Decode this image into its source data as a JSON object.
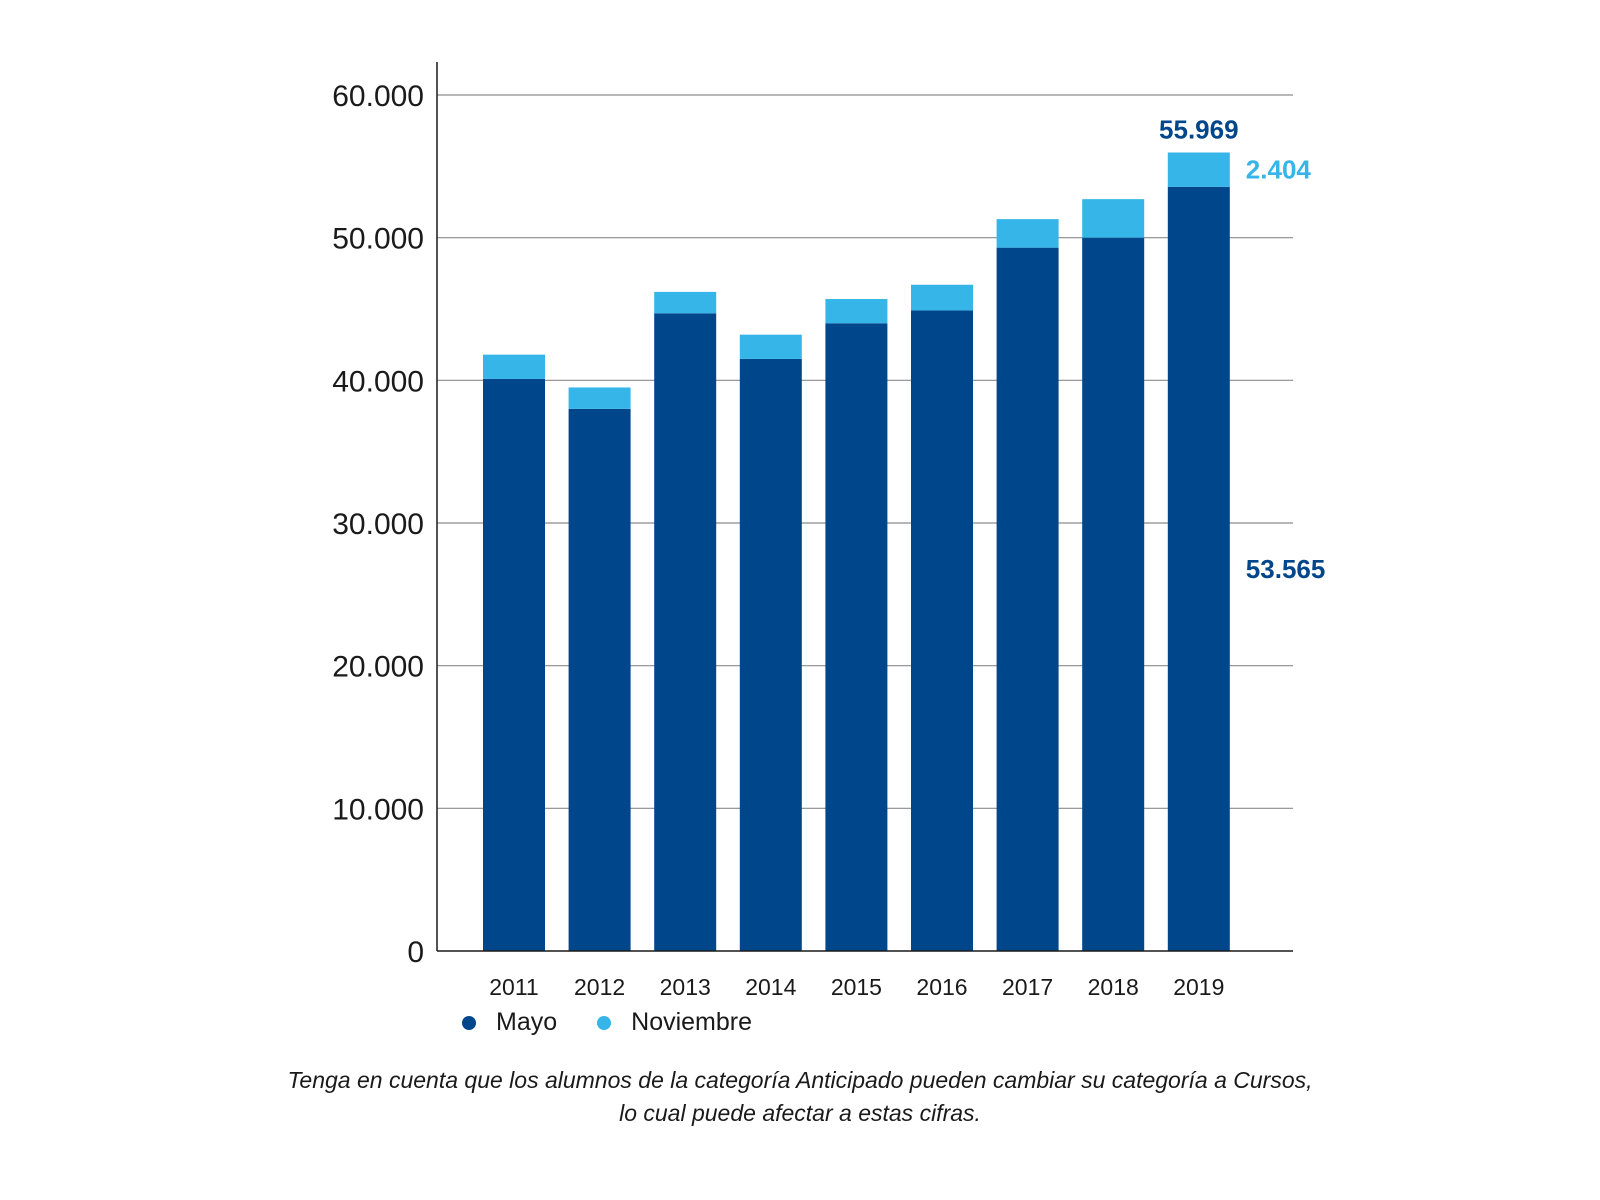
{
  "chart_data": {
    "type": "bar",
    "stacked": true,
    "categories": [
      "2011",
      "2012",
      "2013",
      "2014",
      "2015",
      "2016",
      "2017",
      "2018",
      "2019"
    ],
    "series": [
      {
        "name": "Mayo",
        "color": "#00468b",
        "values": [
          40100,
          38000,
          44700,
          41500,
          44000,
          44900,
          49300,
          50000,
          53565
        ]
      },
      {
        "name": "Noviembre",
        "color": "#35b5e8",
        "values": [
          1700,
          1500,
          1500,
          1700,
          1700,
          1800,
          2000,
          2700,
          2404
        ]
      }
    ],
    "ylim": [
      0,
      60000
    ],
    "yticks": [
      0,
      10000,
      20000,
      30000,
      40000,
      50000,
      60000
    ],
    "ytick_labels": [
      "0",
      "10.000",
      "20.000",
      "30.000",
      "40.000",
      "50.000",
      "60.000"
    ],
    "grid": true,
    "legend_position": "bottom-left",
    "annotations": {
      "total_2019": "55.969",
      "noviembre_2019": "2.404",
      "mayo_2019": "53.565"
    },
    "note_lines": [
      "Tenga en cuenta que los alumnos de la categoría Anticipado pueden cambiar su categoría a Cursos,",
      "lo cual puede afectar a estas cifras."
    ]
  }
}
